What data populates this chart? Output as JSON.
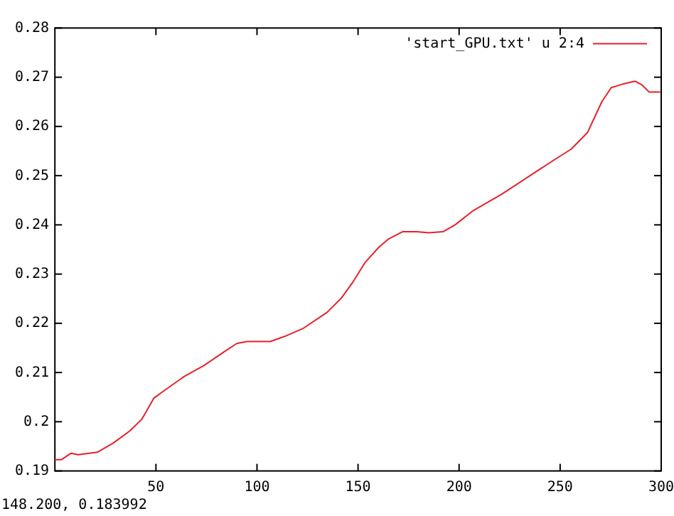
{
  "chart_data": {
    "type": "line",
    "xlim": [
      0,
      300
    ],
    "ylim": [
      0.19,
      0.28
    ],
    "xticks": [
      50,
      100,
      150,
      200,
      250,
      300
    ],
    "yticks": [
      0.19,
      0.2,
      0.21,
      0.22,
      0.23,
      0.24,
      0.25,
      0.26,
      0.27,
      0.28
    ],
    "grid": false,
    "legend": "top right",
    "annotations": [
      "148.200,  0.183992"
    ],
    "series": [
      {
        "name": "'start_GPU.txt'  u 2:4",
        "color": "#e8202a",
        "x": [
          0,
          3.3,
          8,
          11.5,
          21,
          29,
          37,
          43,
          49,
          54,
          64,
          73.7,
          83,
          90,
          95,
          106.5,
          113.5,
          123,
          134.6,
          141.7,
          147.5,
          153.4,
          160.4,
          165,
          172,
          179,
          185,
          192,
          198,
          207,
          221,
          235.5,
          247,
          255.5,
          263.6,
          270.6,
          275.3,
          281,
          287,
          290.6,
          294,
          299.5
        ],
        "values": [
          0.1923,
          0.1923,
          0.1936,
          0.1933,
          0.1938,
          0.1957,
          0.1981,
          0.2005,
          0.2048,
          0.2063,
          0.2092,
          0.2114,
          0.214,
          0.2159,
          0.2163,
          0.2163,
          0.2173,
          0.219,
          0.2222,
          0.2251,
          0.2284,
          0.2323,
          0.2355,
          0.2371,
          0.2386,
          0.2386,
          0.2384,
          0.2386,
          0.24,
          0.2429,
          0.2462,
          0.2501,
          0.2532,
          0.2554,
          0.2588,
          0.265,
          0.2679,
          0.2686,
          0.2692,
          0.2684,
          0.267,
          0.267
        ]
      }
    ]
  }
}
